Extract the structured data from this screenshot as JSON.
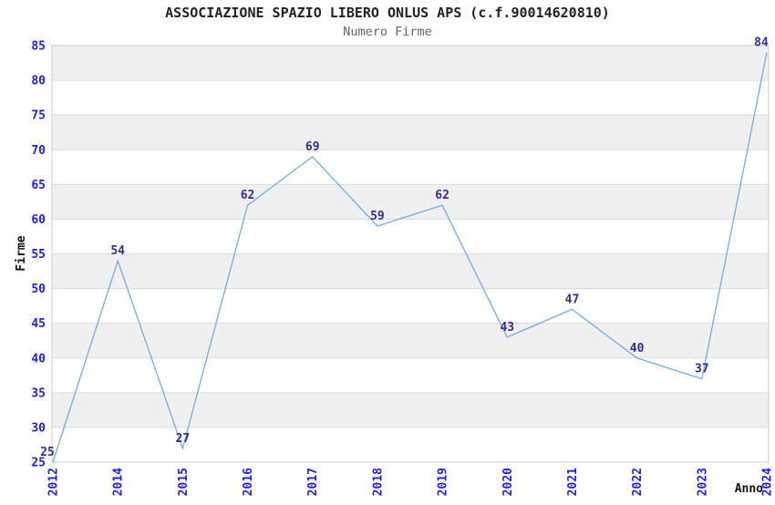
{
  "chart_data": {
    "type": "line",
    "title": "ASSOCIAZIONE SPAZIO LIBERO ONLUS APS (c.f.90014620810)",
    "subtitle": "Numero Firme",
    "xlabel": "Anno",
    "ylabel": "Firme",
    "categories": [
      "2012",
      "2014",
      "2015",
      "2016",
      "2017",
      "2018",
      "2019",
      "2020",
      "2021",
      "2022",
      "2023",
      "2024"
    ],
    "values": [
      25,
      54,
      27,
      62,
      69,
      59,
      62,
      43,
      47,
      40,
      37,
      84
    ],
    "ylim": [
      25,
      85
    ],
    "ytick_step": 5,
    "ytick_labels": [
      "25",
      "30",
      "35",
      "40",
      "45",
      "50",
      "55",
      "60",
      "65",
      "70",
      "75",
      "80",
      "85"
    ],
    "grid": "horizontal-only",
    "background_bands": "alternating gray/white every 5 units, gray from 85-80 downward",
    "legend": "none",
    "point_markers": "none",
    "x_tick_rotation_deg": -90,
    "colors": {
      "line": "#74abe2",
      "tick_label": "#2020dd",
      "data_label": "#31318c",
      "band": "#f0f0f0",
      "gridline": "#dcdcdc",
      "plot_border": "#cccccc",
      "title": "#222222",
      "subtitle": "#666666",
      "axis_title": "#111111",
      "background": "#ffffff"
    }
  }
}
